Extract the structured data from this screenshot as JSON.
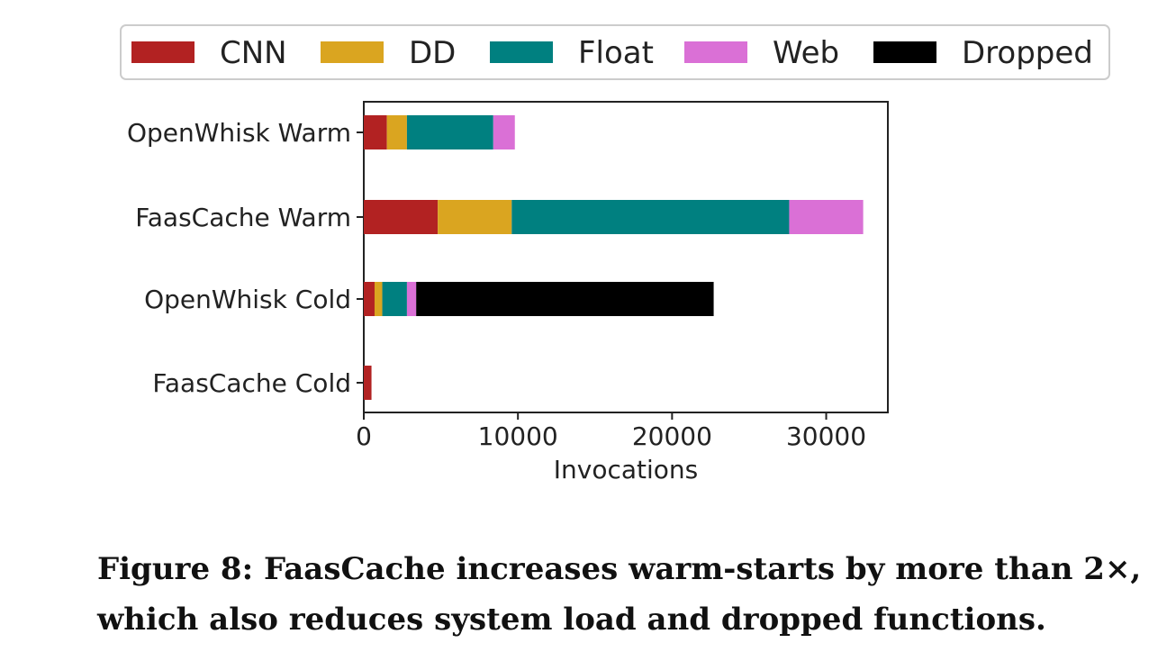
{
  "chart_data": {
    "type": "bar",
    "orientation": "horizontal",
    "stacked": true,
    "categories": [
      "OpenWhisk Warm",
      "FaasCache Warm",
      "OpenWhisk Cold",
      "FaasCache Cold"
    ],
    "series": [
      {
        "name": "CNN",
        "color": "#b22222",
        "values": [
          1500,
          4800,
          700,
          500
        ]
      },
      {
        "name": "DD",
        "color": "#daa520",
        "values": [
          1300,
          4800,
          500,
          0
        ]
      },
      {
        "name": "Float",
        "color": "#008080",
        "values": [
          5600,
          18000,
          1600,
          0
        ]
      },
      {
        "name": "Web",
        "color": "#da70d6",
        "values": [
          1400,
          4800,
          600,
          0
        ]
      },
      {
        "name": "Dropped",
        "color": "#000000",
        "values": [
          0,
          0,
          19300,
          0
        ]
      }
    ],
    "xlabel": "Invocations",
    "ylabel": "",
    "xlim": [
      0,
      34000
    ],
    "xticks": [
      0,
      10000,
      20000,
      30000
    ],
    "grid": false,
    "legend_position": "top"
  },
  "caption": "Figure 8: FaasCache increases warm-starts by more than 2×, which also reduces system load and dropped functions."
}
